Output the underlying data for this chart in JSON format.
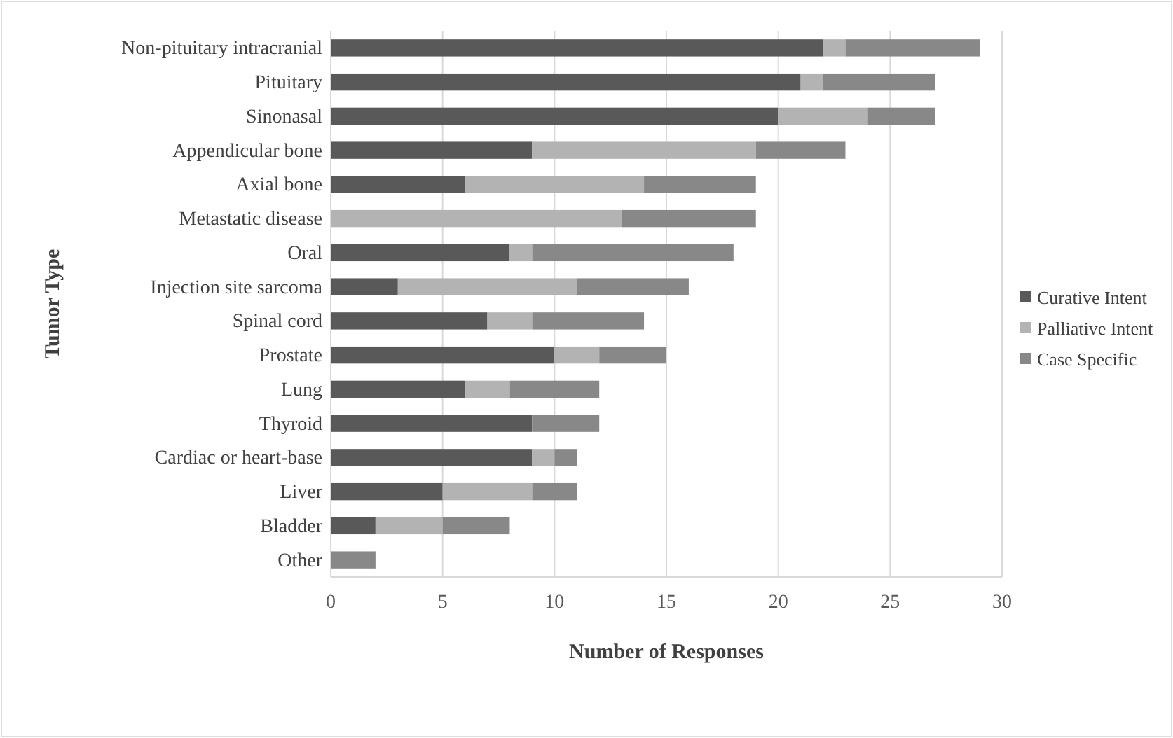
{
  "chart_data": {
    "type": "bar",
    "orientation": "horizontal",
    "stacked": true,
    "xlabel": "Number of Responses",
    "ylabel": "Tumor Type",
    "categories": [
      "Non-pituitary intracranial",
      "Pituitary",
      "Sinonasal",
      "Appendicular bone",
      "Axial bone",
      "Metastatic disease",
      "Oral",
      "Injection site sarcoma",
      "Spinal cord",
      "Prostate",
      "Lung",
      "Thyroid",
      "Cardiac or heart-base",
      "Liver",
      "Bladder",
      "Other"
    ],
    "series": [
      {
        "name": "Curative Intent",
        "color": "#595959",
        "values": [
          22,
          21,
          20,
          9,
          6,
          0,
          8,
          3,
          7,
          10,
          6,
          9,
          9,
          5,
          2,
          0
        ]
      },
      {
        "name": "Palliative Intent",
        "color": "#b3b3b3",
        "values": [
          1,
          1,
          4,
          10,
          8,
          13,
          1,
          8,
          2,
          2,
          2,
          0,
          1,
          4,
          3,
          0
        ]
      },
      {
        "name": "Case Specific",
        "color": "#888888",
        "values": [
          6,
          5,
          3,
          4,
          5,
          6,
          9,
          5,
          5,
          3,
          4,
          3,
          1,
          2,
          3,
          2
        ]
      }
    ],
    "xlim": [
      0,
      30
    ],
    "xticks": [
      0,
      5,
      10,
      15,
      20,
      25,
      30
    ],
    "grid": "x",
    "legend": "right"
  }
}
